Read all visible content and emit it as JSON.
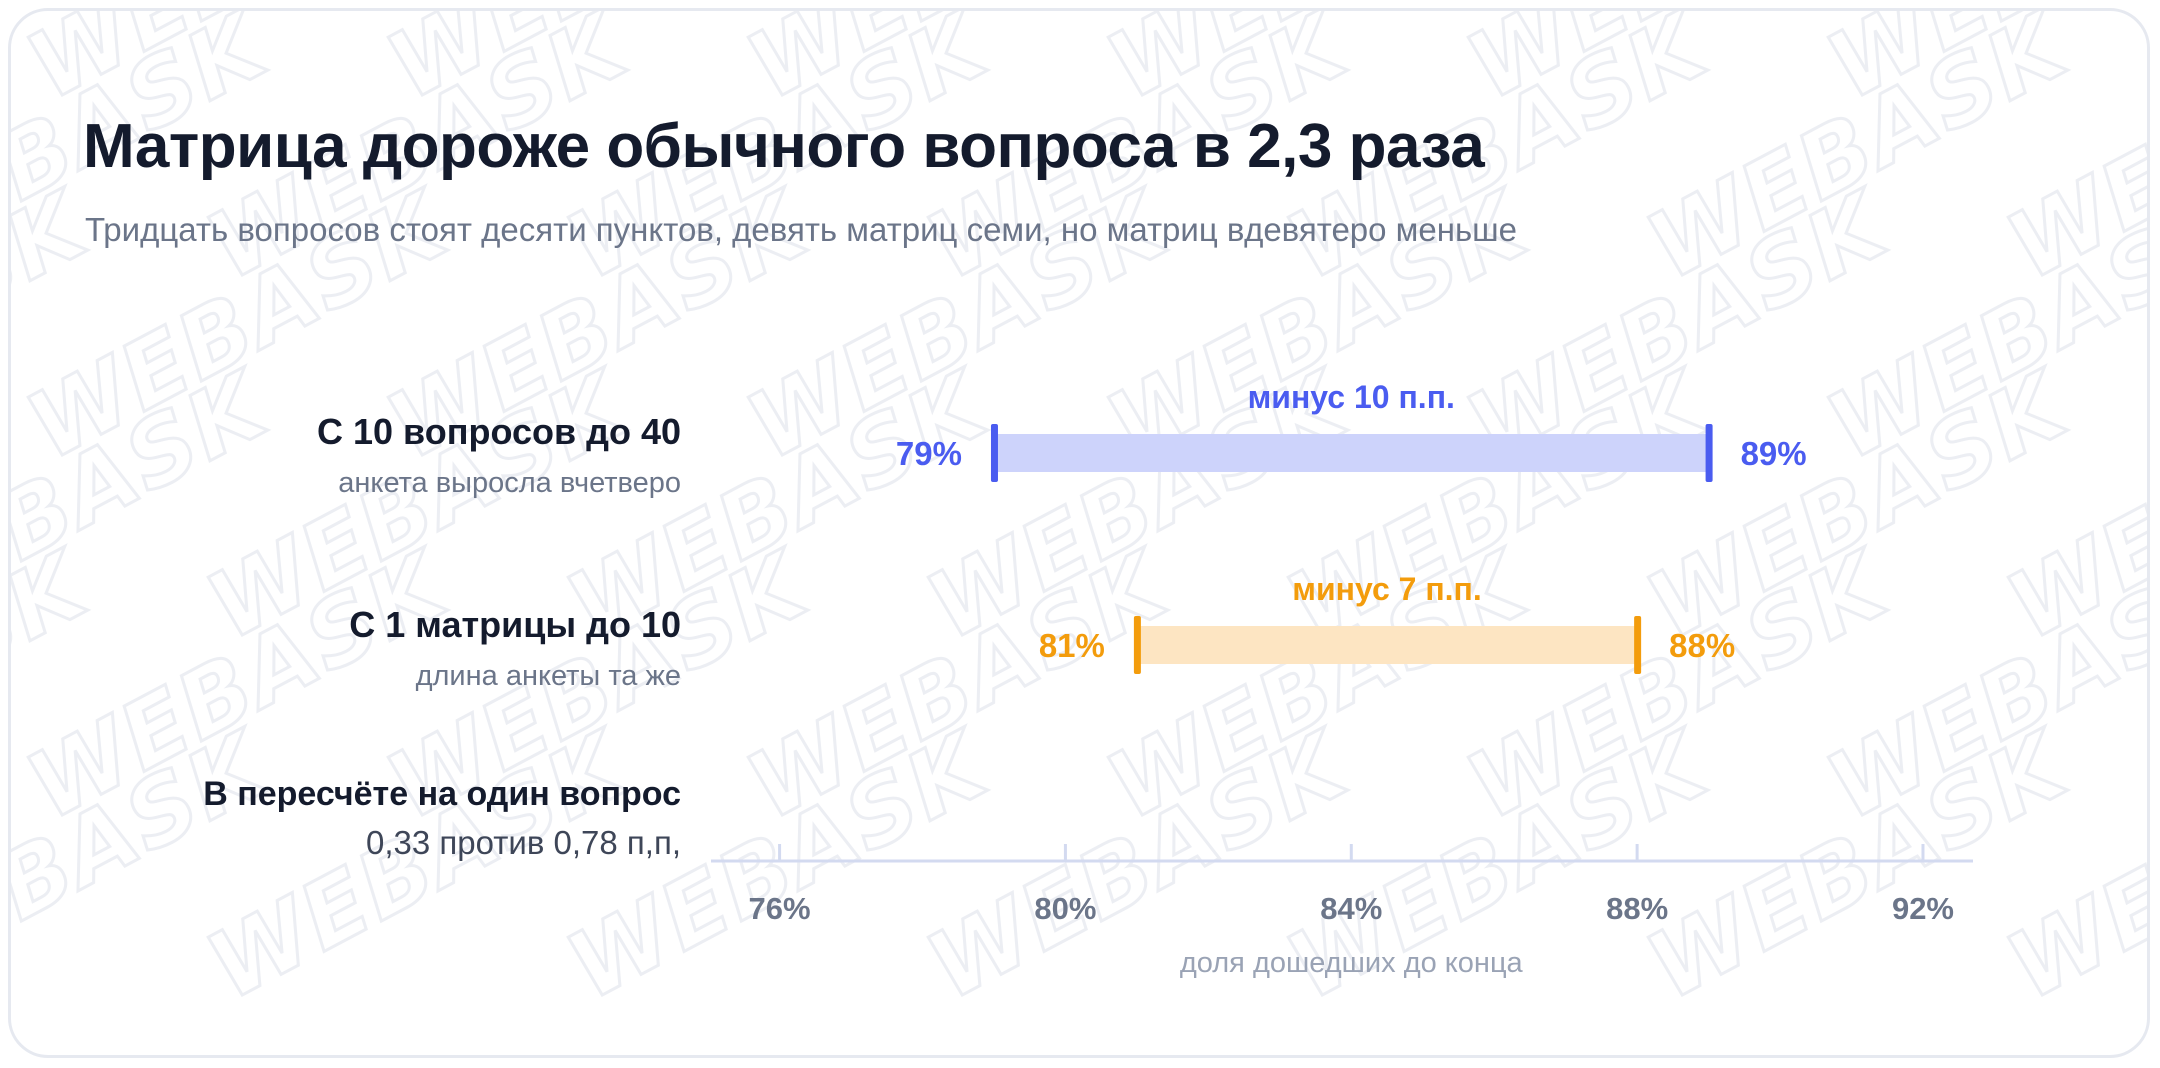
{
  "title": "Матрица дороже обычного вопроса в 2,3 раза",
  "subtitle": "Тридцать вопросов стоят десяти пунктов, девять матриц семи, но матриц вдевятеро меньше",
  "watermark": "WEBASK",
  "rows": [
    {
      "title": "С 10 вопросов до 40",
      "subtitle": "анкета выросла вчетверо"
    },
    {
      "title": "С 1 матрицы до 10",
      "subtitle": "длина анкеты та же"
    },
    {
      "title": "В пересчёте на один вопрос",
      "subtitle": "0,33 против 0,78 п,п,"
    }
  ],
  "colors": {
    "blue": "#4a5cf0",
    "blue_fill": "#cdd3fb",
    "orange": "#f39c0c",
    "orange_fill": "#fde5c2",
    "axis": "#d3daf0",
    "text_dark": "#141b2d",
    "text_muted": "#6b7589"
  },
  "chart_data": {
    "type": "range-bar",
    "xlabel": "доля дошедших до конца",
    "xlim": [
      75.6,
      92.7
    ],
    "ticks": [
      76,
      80,
      84,
      88,
      92
    ],
    "tick_labels": [
      "76%",
      "80%",
      "84%",
      "88%",
      "92%"
    ],
    "series": [
      {
        "start": 79,
        "end": 89,
        "start_label": "79%",
        "end_label": "89%",
        "diff_label": "минус 10 п.п.",
        "color": "blue"
      },
      {
        "start": 81,
        "end": 88,
        "start_label": "81%",
        "end_label": "88%",
        "diff_label": "минус 7 п.п.",
        "color": "orange"
      }
    ]
  }
}
